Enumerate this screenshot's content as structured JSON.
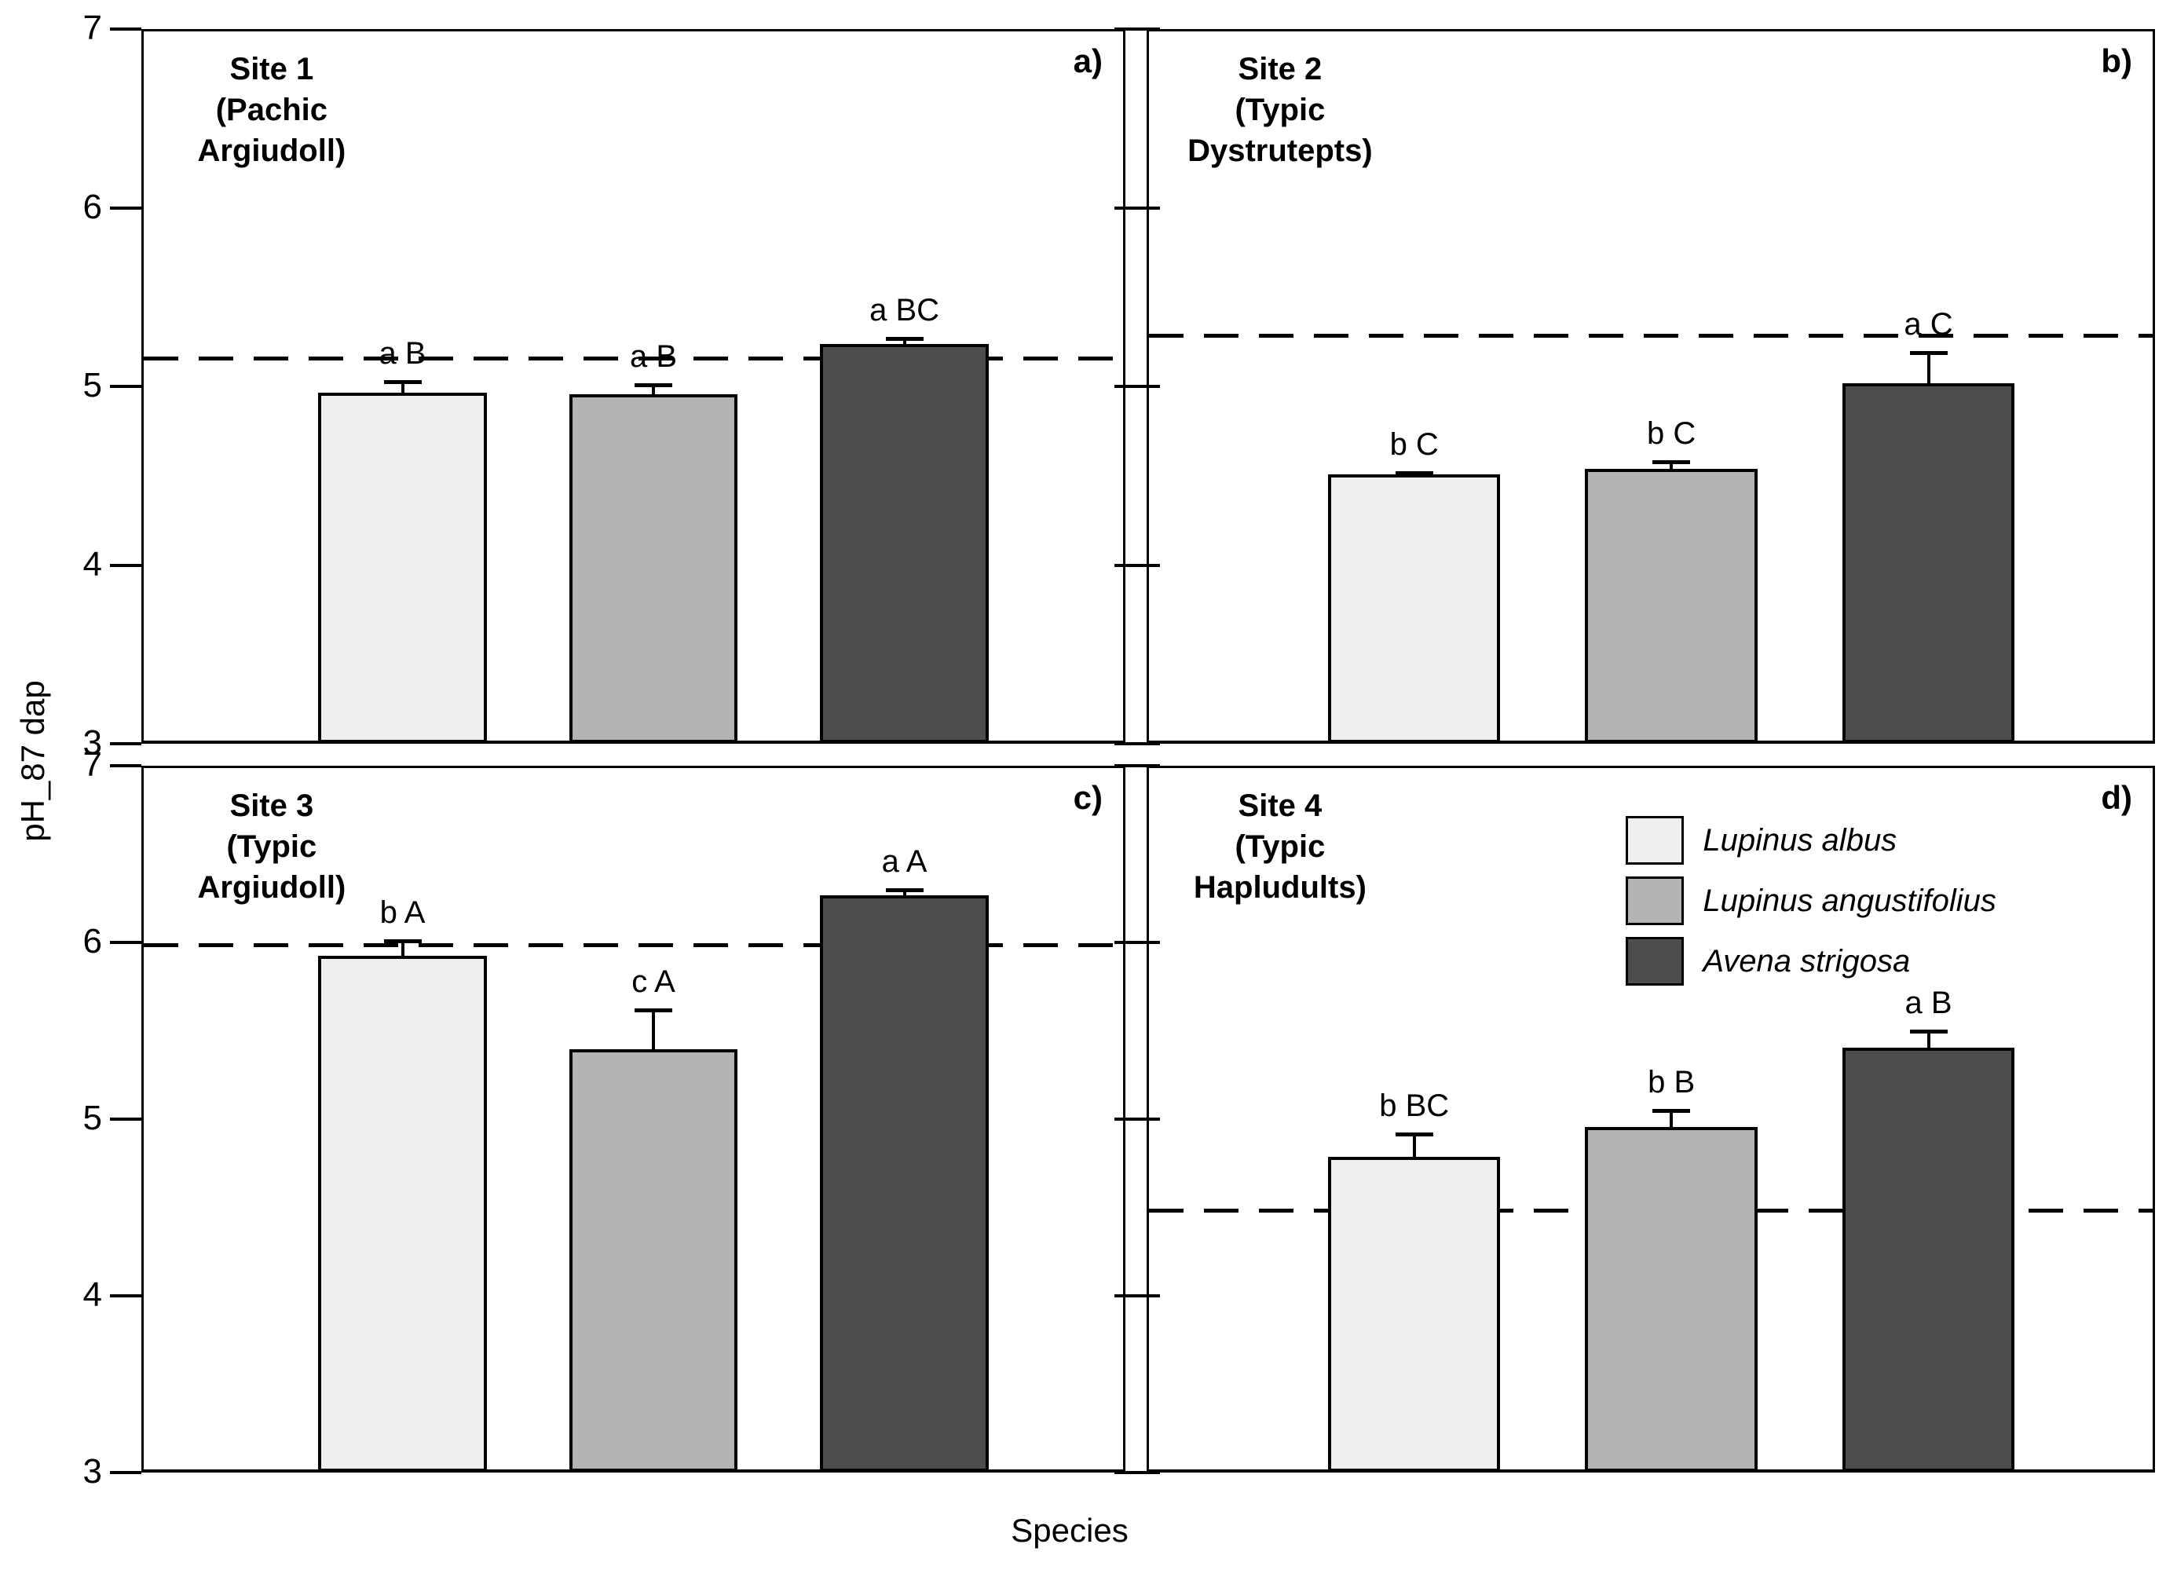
{
  "figure": {
    "ylabel": "pH_87 dap",
    "xlabel": "Species"
  },
  "legend": {
    "entries": [
      {
        "label": "Lupinus albus",
        "color": "#efefef"
      },
      {
        "label": "Lupinus angustifolius",
        "color": "#b4b4b4"
      },
      {
        "label": "Avena strigosa",
        "color": "#4d4d4d"
      }
    ]
  },
  "chart_data": {
    "type": "bar",
    "categories": [
      "Lupinus albus",
      "Lupinus angustifolius",
      "Avena strigosa"
    ],
    "series_colors": [
      "#efefef",
      "#b4b4b4",
      "#4d4d4d"
    ],
    "title": "",
    "xlabel": "Species",
    "ylabel": "pH_87 dap",
    "ylim": [
      3,
      7
    ],
    "yticks": [
      7,
      6,
      5,
      4,
      3
    ],
    "grid": false,
    "legend_position": "panel-d-upper-right",
    "panels": [
      {
        "id": "a",
        "letter": "a)",
        "site": "Site 1",
        "soil": "(Pachic Argiudoll)",
        "ref_line": 5.17,
        "values": [
          4.98,
          4.97,
          5.25
        ],
        "errors": [
          0.07,
          0.06,
          0.04
        ],
        "sig_labels": [
          "a B",
          "a B",
          "a BC"
        ]
      },
      {
        "id": "b",
        "letter": "b)",
        "site": "Site 2",
        "soil": "(Typic Dystrutepts)",
        "ref_line": 5.3,
        "values": [
          4.52,
          4.55,
          5.03
        ],
        "errors": [
          0.02,
          0.05,
          0.18
        ],
        "sig_labels": [
          "b C",
          "b C",
          "a C"
        ]
      },
      {
        "id": "c",
        "letter": "c)",
        "site": "Site 3",
        "soil": "(Typic Argiudoll)",
        "ref_line": 6.0,
        "values": [
          5.94,
          5.41,
          6.28
        ],
        "errors": [
          0.09,
          0.23,
          0.04
        ],
        "sig_labels": [
          "b A",
          "c A",
          "a A"
        ]
      },
      {
        "id": "d",
        "letter": "d)",
        "site": "Site 4",
        "soil": "(Typic Hapludults)",
        "ref_line": 4.5,
        "values": [
          4.8,
          4.97,
          5.42
        ],
        "errors": [
          0.14,
          0.1,
          0.1
        ],
        "sig_labels": [
          "b BC",
          "b B",
          "a B"
        ]
      }
    ]
  }
}
